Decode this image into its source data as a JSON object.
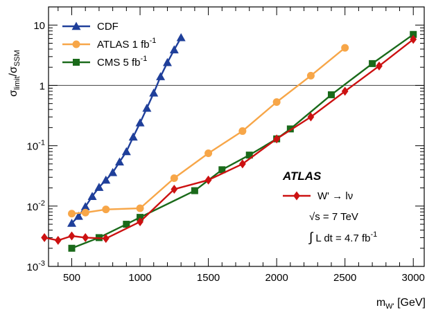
{
  "chart_data": {
    "type": "line",
    "title": "",
    "xlabel": "m_{W'} [GeV]",
    "ylabel": "σ_limit/σ_SSM",
    "xlim": [
      330,
      3080
    ],
    "ylim": [
      0.001,
      20
    ],
    "yscale": "log",
    "x_ticks": [
      500,
      1000,
      1500,
      2000,
      2500,
      3000
    ],
    "y_ticks": [
      {
        "value": 0.001,
        "base": "10",
        "exp": "-3"
      },
      {
        "value": 0.01,
        "base": "10",
        "exp": "-2"
      },
      {
        "value": 0.1,
        "base": "10",
        "exp": "-1"
      },
      {
        "value": 1,
        "base": "1",
        "exp": ""
      },
      {
        "value": 10,
        "base": "10",
        "exp": ""
      }
    ],
    "reference_line": 1,
    "legend_position": "top-left",
    "series": [
      {
        "name": "CDF",
        "legend_base": "CDF",
        "legend_sup": "",
        "color": "#1f3f9a",
        "marker": "triangle",
        "x": [
          500,
          550,
          600,
          650,
          700,
          750,
          800,
          850,
          900,
          950,
          1000,
          1050,
          1100,
          1150,
          1200,
          1250,
          1300
        ],
        "y": [
          0.0052,
          0.0068,
          0.0098,
          0.0145,
          0.0205,
          0.027,
          0.036,
          0.054,
          0.08,
          0.14,
          0.24,
          0.42,
          0.75,
          1.4,
          2.4,
          3.9,
          6.2
        ]
      },
      {
        "name": "ATLAS 1 fb-1",
        "legend_base": "ATLAS 1 fb",
        "legend_sup": "-1",
        "color": "#f7a648",
        "marker": "circle",
        "x": [
          500,
          600,
          750,
          1000,
          1250,
          1500,
          1750,
          2000,
          2250,
          2500
        ],
        "y": [
          0.0075,
          0.0078,
          0.0088,
          0.0092,
          0.029,
          0.075,
          0.175,
          0.53,
          1.45,
          4.2
        ]
      },
      {
        "name": "CMS 5 fb-1",
        "legend_base": "CMS 5 fb",
        "legend_sup": "-1",
        "color": "#1a6a1a",
        "marker": "square",
        "x": [
          500,
          700,
          900,
          1000,
          1400,
          1600,
          1800,
          2000,
          2100,
          2400,
          2700,
          3000
        ],
        "y": [
          0.002,
          0.003,
          0.005,
          0.0065,
          0.018,
          0.04,
          0.07,
          0.13,
          0.19,
          0.7,
          2.3,
          7.0
        ]
      },
      {
        "name": "W' → lν",
        "legend_base": "W' → lν",
        "legend_sup": "",
        "color": "#cc1111",
        "marker": "diamond",
        "x": [
          300,
          400,
          500,
          600,
          750,
          1000,
          1250,
          1500,
          1750,
          2000,
          2250,
          2500,
          2750,
          3000
        ],
        "y": [
          0.003,
          0.0027,
          0.0032,
          0.003,
          0.0029,
          0.0055,
          0.019,
          0.027,
          0.05,
          0.13,
          0.3,
          0.8,
          2.1,
          5.8
        ]
      }
    ],
    "annotations": {
      "experiment": "ATLAS",
      "energy_sqrt": "√s",
      "energy_value": " = 7 TeV",
      "lumi_integral": "∫",
      "lumi_text": "L dt = 4.7 fb",
      "lumi_sup": "-1"
    }
  }
}
